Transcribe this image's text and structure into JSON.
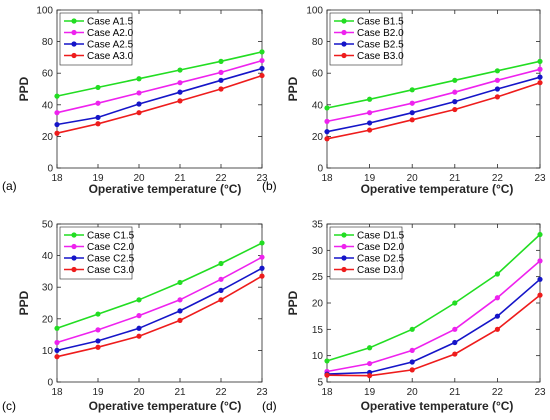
{
  "chart_data": [
    {
      "type": "line",
      "panel_label": "(a)",
      "xlabel": "Operative temperature (°C)",
      "ylabel": "PPD",
      "x": [
        18,
        19,
        20,
        21,
        22,
        23
      ],
      "xlim": [
        18,
        23
      ],
      "ylim": [
        0,
        100
      ],
      "yticks": [
        0,
        20,
        40,
        60,
        80,
        100
      ],
      "grid": false,
      "legend": "top-left",
      "series": [
        {
          "name": "Case A1.5",
          "color": "#22dd22",
          "values": [
            45.5,
            51,
            56.5,
            62,
            67.5,
            73.5
          ]
        },
        {
          "name": "Case A2.0",
          "color": "#ee22ee",
          "values": [
            35,
            41,
            47.5,
            54,
            60.5,
            68
          ]
        },
        {
          "name": "Case A2.5",
          "color": "#1515c8",
          "values": [
            27.5,
            32,
            40.5,
            48,
            55.5,
            63
          ]
        },
        {
          "name": "Case A3.0",
          "color": "#ee1c1c",
          "values": [
            22,
            28,
            35,
            42.5,
            50,
            58.5
          ]
        }
      ]
    },
    {
      "type": "line",
      "panel_label": "(b)",
      "xlabel": "Operative temperature (°C)",
      "ylabel": "PPD",
      "x": [
        18,
        19,
        20,
        21,
        22,
        23
      ],
      "xlim": [
        18,
        23
      ],
      "ylim": [
        0,
        100
      ],
      "yticks": [
        0,
        20,
        40,
        60,
        80,
        100
      ],
      "grid": false,
      "legend": "top-left",
      "series": [
        {
          "name": "Case B1.5",
          "color": "#22dd22",
          "values": [
            38,
            43.5,
            49.5,
            55.5,
            61.5,
            67.5
          ]
        },
        {
          "name": "Case B2.0",
          "color": "#ee22ee",
          "values": [
            29.5,
            35,
            41,
            48,
            55.5,
            62.5
          ]
        },
        {
          "name": "Case B2.5",
          "color": "#1515c8",
          "values": [
            23,
            28.5,
            35,
            42,
            50,
            57.5
          ]
        },
        {
          "name": "Case B3.0",
          "color": "#ee1c1c",
          "values": [
            18.5,
            24,
            30.5,
            37,
            45,
            54
          ]
        }
      ]
    },
    {
      "type": "line",
      "panel_label": "(c)",
      "xlabel": "Operative temperature (°C)",
      "ylabel": "PPD",
      "x": [
        18,
        19,
        20,
        21,
        22,
        23
      ],
      "xlim": [
        18,
        23
      ],
      "ylim": [
        0,
        50
      ],
      "yticks": [
        0,
        10,
        20,
        30,
        40,
        50
      ],
      "grid": false,
      "legend": "top-left",
      "series": [
        {
          "name": "Case C1.5",
          "color": "#22dd22",
          "values": [
            17,
            21.5,
            26,
            31.5,
            37.5,
            44
          ]
        },
        {
          "name": "Case C2.0",
          "color": "#ee22ee",
          "values": [
            12.5,
            16.5,
            21,
            26,
            32.5,
            39.5
          ]
        },
        {
          "name": "Case C2.5",
          "color": "#1515c8",
          "values": [
            10,
            13,
            17,
            22.5,
            29,
            36
          ]
        },
        {
          "name": "Case C3.0",
          "color": "#ee1c1c",
          "values": [
            8,
            11,
            14.5,
            19.5,
            26,
            33.5
          ]
        }
      ]
    },
    {
      "type": "line",
      "panel_label": "(d)",
      "xlabel": "Operative temperature (°C)",
      "ylabel": "PPD",
      "x": [
        18,
        19,
        20,
        21,
        22,
        23
      ],
      "xlim": [
        18,
        23
      ],
      "ylim": [
        5,
        35
      ],
      "yticks": [
        5,
        10,
        15,
        20,
        25,
        30,
        35
      ],
      "grid": false,
      "legend": "top-left",
      "series": [
        {
          "name": "Case D1.5",
          "color": "#22dd22",
          "values": [
            9,
            11.5,
            15,
            20,
            25.5,
            33
          ]
        },
        {
          "name": "Case D2.0",
          "color": "#ee22ee",
          "values": [
            7,
            8.5,
            11,
            15,
            21,
            28
          ]
        },
        {
          "name": "Case D2.5",
          "color": "#1515c8",
          "values": [
            6.5,
            6.8,
            8.8,
            12.5,
            17.5,
            24.5
          ]
        },
        {
          "name": "Case D3.0",
          "color": "#ee1c1c",
          "values": [
            6.3,
            6.2,
            7.3,
            10.3,
            15,
            21.5
          ]
        }
      ]
    }
  ]
}
